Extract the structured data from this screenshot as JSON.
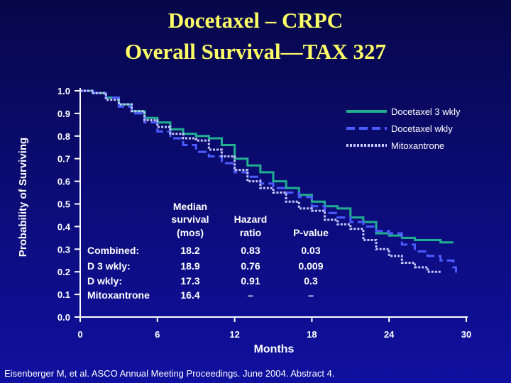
{
  "title": {
    "line1": "Docetaxel – CRPC",
    "line2": "Overall Survival—TAX 327"
  },
  "citation": "Eisenberger M, et al. ASCO Annual Meeting Proceedings. June 2004. Abstract 4.",
  "chart_data": {
    "type": "line",
    "subtype": "kaplan-meier step curves",
    "title": "Docetaxel – CRPC Overall Survival—TAX 327",
    "xlabel": "Months",
    "ylabel": "Probability of Surviving",
    "xlim": [
      0,
      30
    ],
    "ylim": [
      0,
      1.0
    ],
    "xticks": [
      0,
      6,
      12,
      18,
      24,
      30
    ],
    "yticks": [
      "0.0",
      "0.1",
      "0.2",
      "0.3",
      "0.4",
      "0.5",
      "0.6",
      "0.7",
      "0.8",
      "0.9",
      "1.0"
    ],
    "legend_position": "top-right",
    "series": [
      {
        "name": "Docetaxel 3 wkly",
        "color": "#20b090",
        "style": "solid",
        "x": [
          0,
          1,
          2,
          3,
          4,
          5,
          6,
          7,
          8,
          9,
          10,
          11,
          12,
          13,
          14,
          15,
          16,
          17,
          18,
          19,
          20,
          21,
          22,
          23,
          24,
          25,
          26,
          27,
          28,
          29
        ],
        "y": [
          1.0,
          0.99,
          0.97,
          0.94,
          0.91,
          0.88,
          0.86,
          0.83,
          0.81,
          0.8,
          0.79,
          0.76,
          0.7,
          0.67,
          0.64,
          0.6,
          0.57,
          0.54,
          0.51,
          0.49,
          0.48,
          0.44,
          0.42,
          0.37,
          0.36,
          0.35,
          0.34,
          0.34,
          0.33,
          0.33
        ]
      },
      {
        "name": "Docetaxel  wkly",
        "color": "#4a5cff",
        "style": "dashed",
        "x": [
          0,
          1,
          2,
          3,
          4,
          5,
          6,
          7,
          8,
          9,
          10,
          11,
          12,
          13,
          14,
          15,
          16,
          17,
          18,
          19,
          20,
          21,
          22,
          23,
          24,
          25,
          26,
          27,
          28,
          29,
          29.2
        ],
        "y": [
          1.0,
          0.99,
          0.97,
          0.93,
          0.9,
          0.86,
          0.82,
          0.79,
          0.76,
          0.73,
          0.71,
          0.68,
          0.64,
          0.62,
          0.59,
          0.57,
          0.55,
          0.53,
          0.49,
          0.46,
          0.44,
          0.42,
          0.4,
          0.38,
          0.37,
          0.32,
          0.29,
          0.27,
          0.25,
          0.22,
          0.18
        ]
      },
      {
        "name": "Mitoxantrone",
        "color": "#c8c8ff",
        "style": "dotted",
        "x": [
          0,
          1,
          2,
          3,
          4,
          5,
          6,
          7,
          8,
          9,
          10,
          11,
          12,
          13,
          14,
          15,
          16,
          17,
          18,
          19,
          20,
          21,
          22,
          23,
          24,
          25,
          26,
          27,
          28
        ],
        "y": [
          1.0,
          0.99,
          0.96,
          0.94,
          0.91,
          0.87,
          0.84,
          0.81,
          0.79,
          0.78,
          0.74,
          0.71,
          0.65,
          0.6,
          0.57,
          0.55,
          0.51,
          0.48,
          0.47,
          0.43,
          0.41,
          0.39,
          0.34,
          0.3,
          0.27,
          0.24,
          0.22,
          0.2,
          0.2
        ]
      }
    ],
    "table": {
      "headers": [
        "",
        "Median survival (mos)",
        "Hazard ratio",
        "P-value"
      ],
      "header_lines": [
        [
          "Median",
          "survival",
          "(mos)"
        ],
        [
          "Hazard",
          "ratio"
        ],
        [
          "P-value"
        ]
      ],
      "rows": [
        [
          "Combined:",
          "18.2",
          "0.83",
          "0.03"
        ],
        [
          "D  3 wkly:",
          "18.9",
          "0.76",
          "0.009"
        ],
        [
          "D  wkly:",
          "17.3",
          "0.91",
          "0.3"
        ],
        [
          "Mitoxantrone",
          "16.4",
          "–",
          "–"
        ]
      ]
    }
  }
}
